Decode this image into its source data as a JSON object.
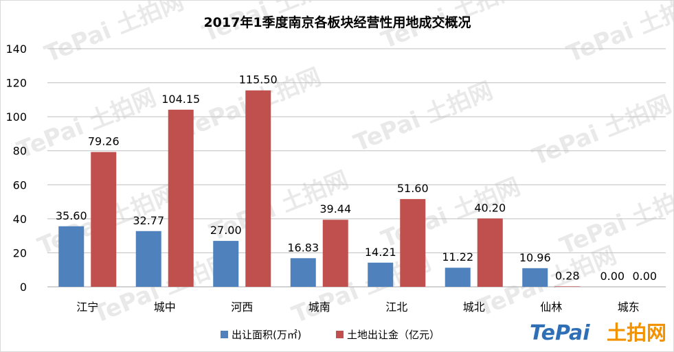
{
  "chart_data": {
    "type": "bar",
    "title": "2017年1季度南京各板块经营性用地成交概况",
    "categories": [
      "江宁",
      "城中",
      "河西",
      "城南",
      "江北",
      "城北",
      "仙林",
      "城东"
    ],
    "series": [
      {
        "name": "出让面积(万㎡)",
        "color": "#4f81bd",
        "values": [
          35.6,
          32.77,
          27.0,
          16.83,
          14.21,
          11.22,
          10.96,
          0.0
        ],
        "labels": [
          "35.60",
          "32.77",
          "27.00",
          "16.83",
          "14.21",
          "11.22",
          "10.96",
          "0.00"
        ]
      },
      {
        "name": "土地出让金（亿元）",
        "color": "#c0504d",
        "values": [
          79.26,
          104.15,
          115.5,
          39.44,
          51.6,
          40.2,
          0.28,
          0.0
        ],
        "labels": [
          "79.26",
          "104.15",
          "115.50",
          "39.44",
          "51.60",
          "40.20",
          "0.28",
          "0.00"
        ]
      }
    ],
    "ylim": [
      0,
      140
    ],
    "yticks": [
      "0",
      "20",
      "40",
      "60",
      "80",
      "100",
      "120",
      "140"
    ],
    "grid": true,
    "legend_position": "bottom"
  },
  "watermark": {
    "brand": "TePai",
    "cn": "土拍网"
  }
}
